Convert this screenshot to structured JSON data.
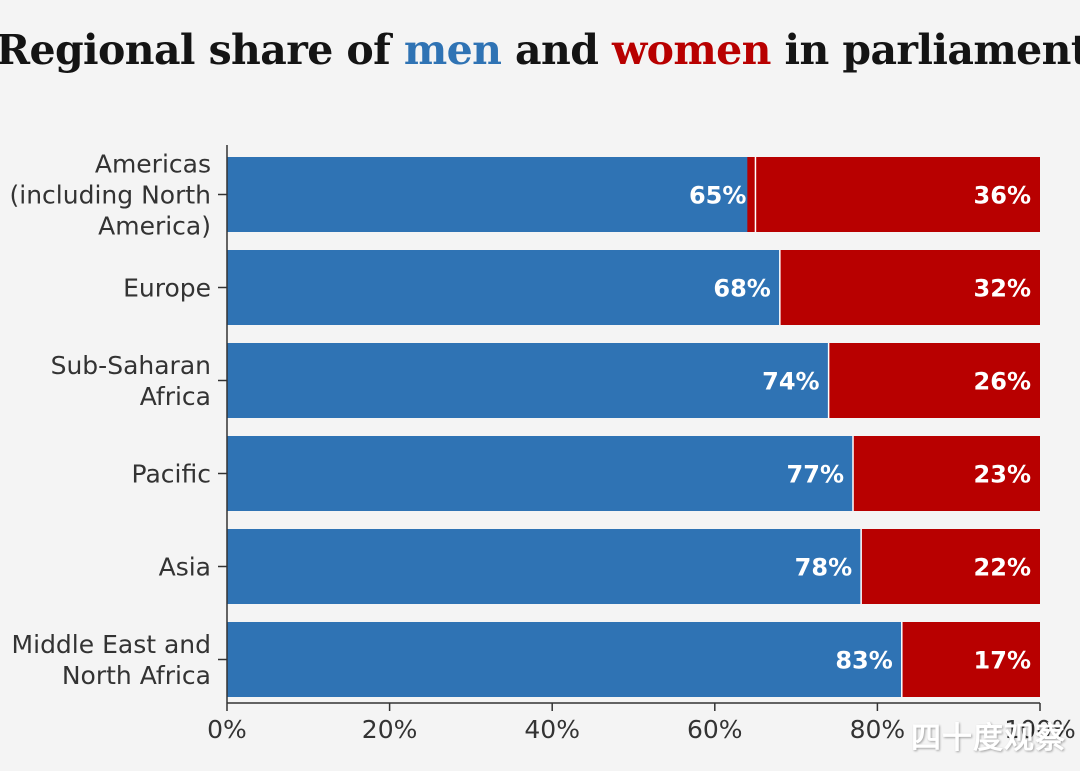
{
  "title": {
    "part1": "Regional share of ",
    "men": "men",
    "part2": " and ",
    "women": "women",
    "part3": " in parliament"
  },
  "colors": {
    "men": "#2f73b4",
    "women": "#b80000",
    "title_text": "#141414",
    "background": "#f4f4f4"
  },
  "chart_data": {
    "type": "bar",
    "orientation": "horizontal",
    "stacked": true,
    "categories": [
      [
        "Americas",
        "(including North",
        "America)"
      ],
      [
        "Europe"
      ],
      [
        "Sub-Saharan",
        "Africa"
      ],
      [
        "Pacific"
      ],
      [
        "Asia"
      ],
      [
        "Middle East and",
        "North Africa"
      ]
    ],
    "series": [
      {
        "name": "men",
        "values": [
          65,
          68,
          74,
          77,
          78,
          83
        ],
        "labels": [
          "65%",
          "68%",
          "74%",
          "77%",
          "78%",
          "83%"
        ]
      },
      {
        "name": "women",
        "values": [
          36,
          32,
          26,
          23,
          22,
          17
        ],
        "labels": [
          "36%",
          "32%",
          "26%",
          "23%",
          "22%",
          "17%"
        ]
      }
    ],
    "xlim": [
      0,
      100
    ],
    "x_ticks": [
      "0%",
      "20%",
      "40%",
      "60%",
      "80%",
      "100%"
    ],
    "grid": false
  },
  "watermark": "四十度观察"
}
